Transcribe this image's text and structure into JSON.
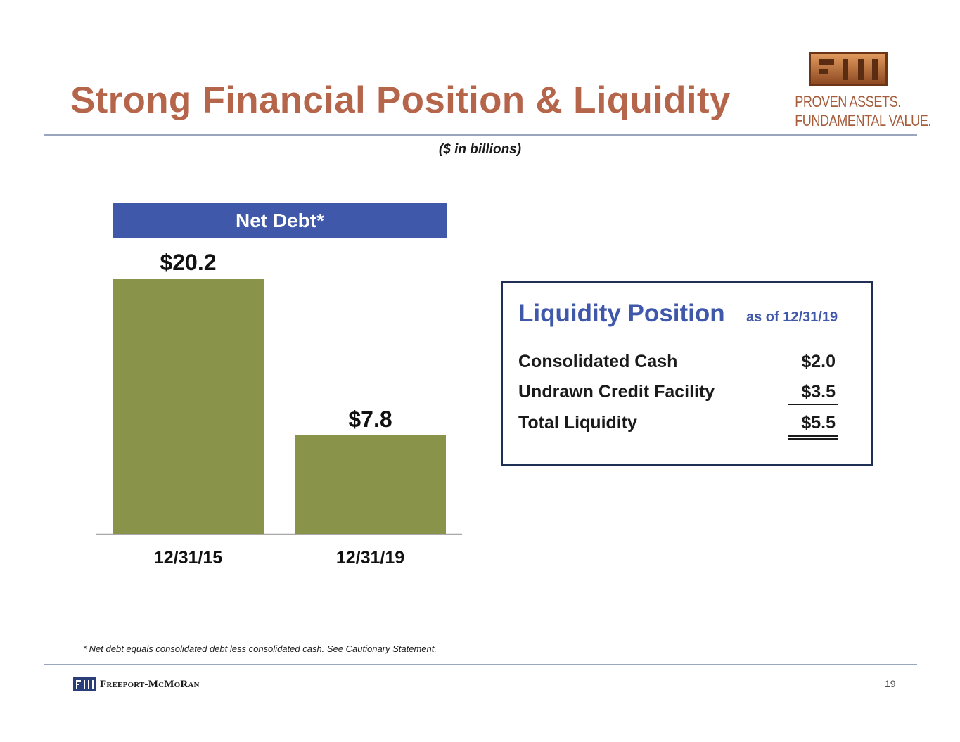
{
  "slide": {
    "title": "Strong Financial Position & Liquidity",
    "subtitle": "($ in billions)",
    "logo_text": "FCX",
    "tagline_line1": "PROVEN ASSETS.",
    "tagline_line2": "FUNDAMENTAL VALUE.",
    "footnote": "* Net debt equals consolidated debt less consolidated cash. See Cautionary Statement.",
    "footer_company": "Freeport-McMoRan",
    "page_number": "19"
  },
  "colors": {
    "title": "#B5654A",
    "header_blue": "#3F58A9",
    "bar_green": "#89944A",
    "box_border": "#1F2F55",
    "rule": "#9AA6BF"
  },
  "chart_data": {
    "type": "bar",
    "title": "Net Debt*",
    "categories": [
      "12/31/15",
      "12/31/19"
    ],
    "values": [
      20.2,
      7.8
    ],
    "value_labels": [
      "$20.2",
      "$7.8"
    ],
    "xlabel": "",
    "ylabel": "",
    "ylim": [
      0,
      20.2
    ],
    "grid": false,
    "legend": "none"
  },
  "liquidity": {
    "title": "Liquidity Position",
    "as_of": "as of 12/31/19",
    "rows": [
      {
        "label": "Consolidated Cash",
        "value": "$2.0"
      },
      {
        "label": "Undrawn Credit Facility",
        "value": "$3.5"
      },
      {
        "label": "Total Liquidity",
        "value": "$5.5"
      }
    ]
  }
}
